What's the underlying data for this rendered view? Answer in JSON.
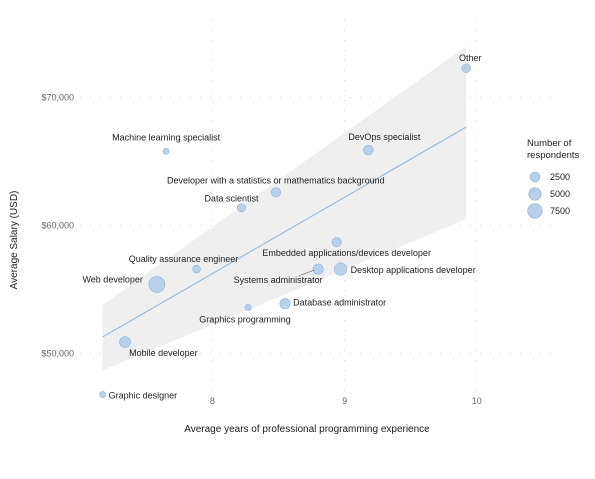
{
  "chart_data": {
    "type": "scatter",
    "title": "",
    "xlabel": "Average years of professional programming experience",
    "ylabel": "Average Salary (USD)",
    "xlim": [
      7.15,
      10.1
    ],
    "ylim": [
      47000,
      74500
    ],
    "x_ticks": [
      {
        "value": 8,
        "label": "8"
      },
      {
        "value": 9,
        "label": "9"
      },
      {
        "value": 10,
        "label": "10"
      }
    ],
    "y_ticks": [
      {
        "value": 50000,
        "label": "$50,000"
      },
      {
        "value": 60000,
        "label": "$60,000"
      },
      {
        "value": 70000,
        "label": "$70,000"
      }
    ],
    "grid": true,
    "points": [
      {
        "label": "Other",
        "x": 9.92,
        "y": 72300,
        "n": 1800
      },
      {
        "label": "DevOps specialist",
        "x": 9.18,
        "y": 65900,
        "n": 2500
      },
      {
        "label": "Machine learning specialist",
        "x": 7.65,
        "y": 65800,
        "n": 500
      },
      {
        "label": "Developer with a statistics or mathematics background",
        "x": 8.48,
        "y": 62600,
        "n": 2200
      },
      {
        "label": "Data scientist",
        "x": 8.22,
        "y": 61400,
        "n": 1500
      },
      {
        "label": "Embedded applications/devices developer",
        "x": 8.94,
        "y": 58700,
        "n": 2200
      },
      {
        "label": "Quality assurance engineer",
        "x": 7.88,
        "y": 56600,
        "n": 1200
      },
      {
        "label": "Desktop applications developer",
        "x": 8.97,
        "y": 56600,
        "n": 5000
      },
      {
        "label": "Systems administrator",
        "x": 8.8,
        "y": 56600,
        "n": 3000
      },
      {
        "label": "Web developer",
        "x": 7.58,
        "y": 55400,
        "n": 9500
      },
      {
        "label": "Database administrator",
        "x": 8.55,
        "y": 53900,
        "n": 3000
      },
      {
        "label": "Graphics programming",
        "x": 8.27,
        "y": 53600,
        "n": 600
      },
      {
        "label": "Mobile developer",
        "x": 7.34,
        "y": 50900,
        "n": 3500
      },
      {
        "label": "Graphic designer",
        "x": 7.17,
        "y": 46800,
        "n": 500
      }
    ],
    "trend": {
      "x": [
        7.17,
        9.92
      ],
      "y": [
        51300,
        67700
      ]
    },
    "band": {
      "upper": [
        53800,
        74000
      ],
      "lower": [
        48700,
        60500
      ]
    },
    "size_legend": {
      "title": [
        "Number of",
        "respondents"
      ],
      "entries": [
        {
          "value": 2500,
          "label": "2500"
        },
        {
          "value": 5000,
          "label": "5000"
        },
        {
          "value": 7500,
          "label": "7500"
        }
      ]
    },
    "colors": {
      "point_fill": "#b7cfe8",
      "point_stroke": "#8fb2d6",
      "trend": "#8fb7dd",
      "band": "#ececec",
      "text": "#222222",
      "tick": "#666666",
      "grid": "#c8c8c8"
    }
  }
}
